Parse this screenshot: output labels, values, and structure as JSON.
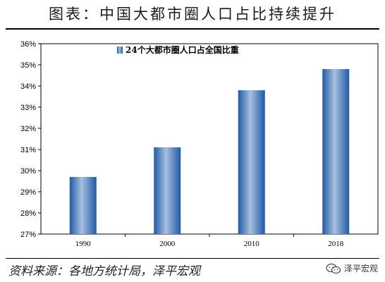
{
  "header": {
    "title": "图表：中国大都市圈人口占比持续提升"
  },
  "footer": {
    "source": "资料来源：各地方统计局，泽平宏观"
  },
  "watermark": {
    "text": "泽平宏观",
    "icon": "wechat-icon"
  },
  "chart_data": {
    "type": "bar",
    "categories": [
      "1990",
      "2000",
      "2010",
      "2018"
    ],
    "series": [
      {
        "name": "24个大都市圈人口占全国比重",
        "values": [
          29.7,
          31.1,
          33.8,
          34.8
        ]
      }
    ],
    "yticks": [
      "27%",
      "28%",
      "29%",
      "30%",
      "31%",
      "32%",
      "33%",
      "34%",
      "35%",
      "36%"
    ],
    "ylim": [
      27,
      36
    ],
    "unit": "%",
    "grid": false,
    "legend_position": "top-left",
    "bar_color": "#2a6cb8"
  }
}
